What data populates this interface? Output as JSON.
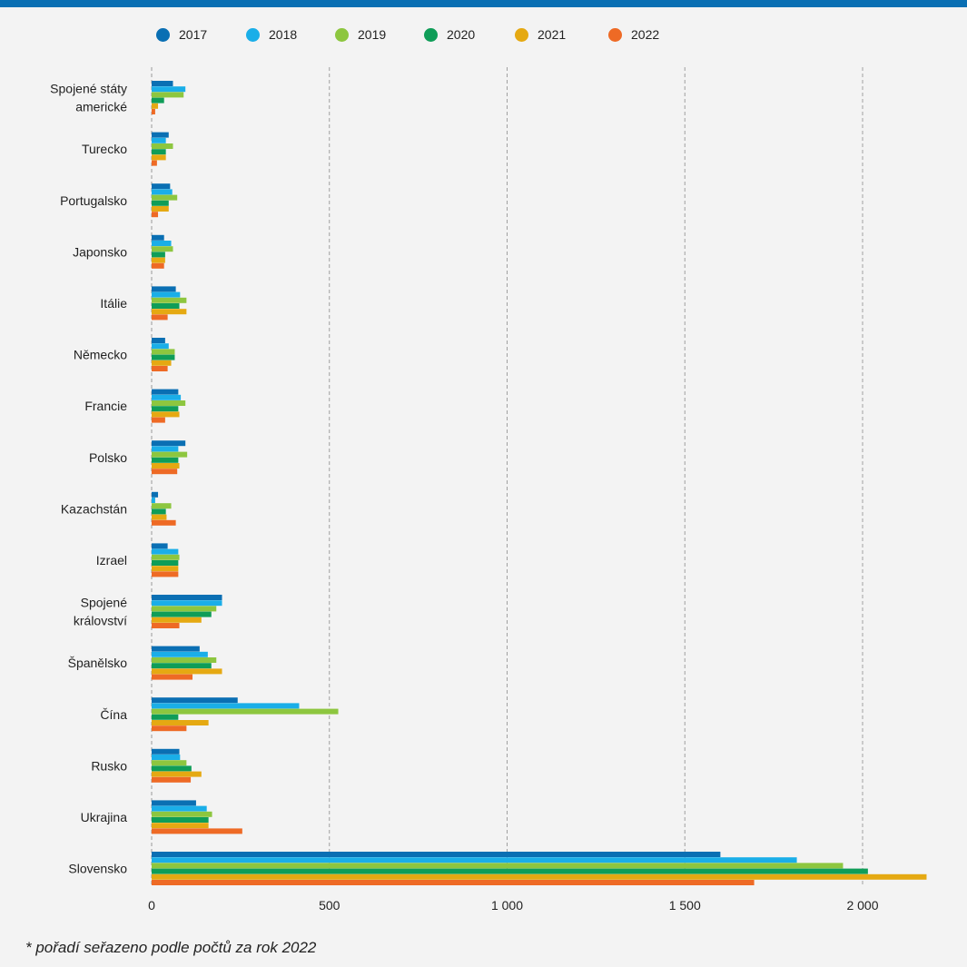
{
  "colors": {
    "top_bar": "#0a6fb3",
    "background": "#f3f3f3",
    "grid": "#a0a0a0",
    "axis": "#999999",
    "series": [
      "#0a6fb3",
      "#1aaee8",
      "#8dc63f",
      "#0f9d58",
      "#e5a912",
      "#ee6a25"
    ]
  },
  "footnote": "* pořadí seřazeno podle počtů za rok 2022",
  "chart_data": {
    "type": "bar",
    "orientation": "horizontal",
    "title": "",
    "xlabel": "",
    "ylabel": "",
    "xlim": [
      0,
      2200
    ],
    "xticks": [
      0,
      500,
      1000,
      1500,
      2000
    ],
    "xtick_labels": [
      "0",
      "500",
      "1 000",
      "1 500",
      "2 000"
    ],
    "grid": "vertical dashed",
    "legend_position": "top",
    "categories": [
      [
        "Spojené státy",
        "americké"
      ],
      [
        "Turecko"
      ],
      [
        "Portugalsko"
      ],
      [
        "Japonsko"
      ],
      [
        "Itálie"
      ],
      [
        "Německo"
      ],
      [
        "Francie"
      ],
      [
        "Polsko"
      ],
      [
        "Kazachstán"
      ],
      [
        "Izrael"
      ],
      [
        "Spojené",
        "království"
      ],
      [
        "Španělsko"
      ],
      [
        "Čína"
      ],
      [
        "Rusko"
      ],
      [
        "Ukrajina"
      ],
      [
        "Slovensko"
      ]
    ],
    "series": [
      {
        "name": "2017",
        "values": [
          60,
          48,
          52,
          35,
          68,
          38,
          75,
          95,
          18,
          45,
          198,
          135,
          242,
          78,
          125,
          1600
        ]
      },
      {
        "name": "2018",
        "values": [
          95,
          40,
          58,
          55,
          80,
          48,
          82,
          75,
          10,
          75,
          198,
          158,
          415,
          80,
          155,
          1815
        ]
      },
      {
        "name": "2019",
        "values": [
          90,
          60,
          72,
          60,
          98,
          65,
          95,
          100,
          55,
          78,
          182,
          182,
          525,
          98,
          170,
          1945
        ]
      },
      {
        "name": "2020",
        "values": [
          35,
          40,
          48,
          38,
          78,
          65,
          75,
          75,
          40,
          75,
          168,
          168,
          75,
          112,
          160,
          2015
        ]
      },
      {
        "name": "2021",
        "values": [
          18,
          40,
          48,
          38,
          98,
          55,
          78,
          78,
          42,
          75,
          140,
          198,
          160,
          140,
          160,
          2180
        ]
      },
      {
        "name": "2022",
        "values": [
          10,
          15,
          18,
          35,
          45,
          45,
          38,
          72,
          68,
          75,
          78,
          115,
          98,
          110,
          255,
          1695
        ]
      }
    ]
  }
}
